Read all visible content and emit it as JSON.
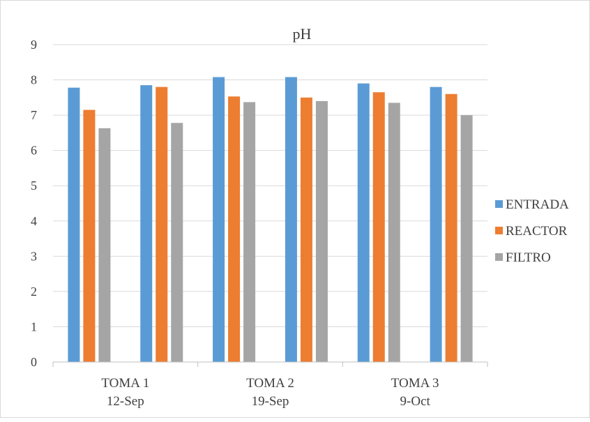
{
  "chart_data": {
    "type": "bar",
    "title": "pH",
    "xlabel": "",
    "ylabel": "",
    "ylim": [
      0,
      9
    ],
    "yticks": [
      0,
      1,
      2,
      3,
      4,
      5,
      6,
      7,
      8,
      9
    ],
    "grid": true,
    "legend_position": "right",
    "groups": [
      {
        "label": "TOMA 1",
        "sublabel": "12-Sep"
      },
      {
        "label": "TOMA 2",
        "sublabel": "19-Sep"
      },
      {
        "label": "TOMA 3",
        "sublabel": "9-Oct"
      }
    ],
    "categories": [
      "TOMA 1 a",
      "TOMA 1 b",
      "TOMA 2 a",
      "TOMA 2 b",
      "TOMA 3 a",
      "TOMA 3 b"
    ],
    "series": [
      {
        "name": "ENTRADA",
        "color": "#5B9BD5",
        "values": [
          7.78,
          7.85,
          8.08,
          8.08,
          7.9,
          7.8
        ]
      },
      {
        "name": "REACTOR",
        "color": "#ED7D31",
        "values": [
          7.15,
          7.8,
          7.53,
          7.5,
          7.65,
          7.6
        ]
      },
      {
        "name": "FILTRO",
        "color": "#A5A5A5",
        "values": [
          6.63,
          6.78,
          7.37,
          7.4,
          7.35,
          7.0
        ]
      }
    ]
  }
}
